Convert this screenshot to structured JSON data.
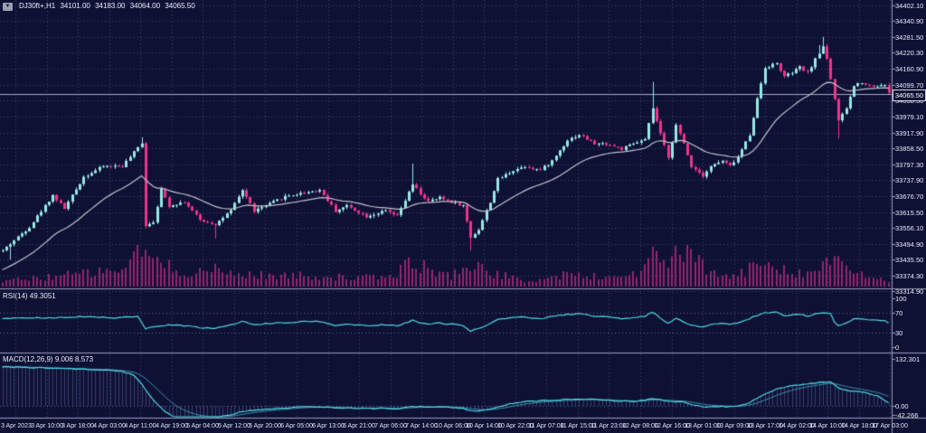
{
  "header": {
    "symbol_line": "DJ30ft+,H1",
    "open": "34101.00",
    "high": "34183.00",
    "low": "34064.00",
    "close": "34065.50"
  },
  "price_axis": {
    "labels": [
      "34402.10",
      "34340.90",
      "34281.50",
      "34220.30",
      "34160.90",
      "34099.70",
      "34038.50",
      "33979.10",
      "33917.90",
      "33858.50",
      "33797.30",
      "33737.90",
      "33676.70",
      "33615.50",
      "33556.10",
      "33494.90",
      "33435.50",
      "33374.30",
      "33314.90"
    ],
    "current": "34065.50"
  },
  "rsi_panel": {
    "label": "RSI(14)",
    "value": "49.3051",
    "axis": [
      "100",
      "70",
      "30",
      "0"
    ],
    "levels": [
      70,
      30
    ]
  },
  "macd_panel": {
    "label": "MACD(12,26,9)",
    "values": "9.006 8.573",
    "axis_max": "132.301",
    "axis_zero": "0.00",
    "axis_min": "-42.266"
  },
  "time_axis": {
    "labels": [
      "3 Apr 2023",
      "3 Apr 10:00",
      "3 Apr 18:00",
      "4 Apr 03:00",
      "4 Apr 11:00",
      "4 Apr 19:00",
      "5 Apr 04:00",
      "5 Apr 12:00",
      "5 Apr 20:00",
      "6 Apr 05:00",
      "6 Apr 13:00",
      "6 Apr 21:00",
      "7 Apr 06:00",
      "7 Apr 14:00",
      "10 Apr 06:00",
      "10 Apr 14:00",
      "10 Apr 22:00",
      "11 Apr 07:00",
      "11 Apr 15:00",
      "11 Apr 23:00",
      "12 Apr 08:00",
      "12 Apr 16:00",
      "13 Apr 01:00",
      "13 Apr 09:00",
      "13 Apr 17:00",
      "14 Apr 02:00",
      "14 Apr 10:00",
      "14 Apr 18:00",
      "17 Apr 03:00"
    ]
  },
  "colors": {
    "background": "#0e1134",
    "grid": "rgba(125,142,215,0.42)",
    "bull": "#97e9e5",
    "bear": "#f0338a",
    "ma_line": "#c3c3cc",
    "volume": "#96256e",
    "indicator_line": "#4fd9e4",
    "signal_line": "#3a93ae",
    "histogram": "rgba(85,95,150,0.6)",
    "separator": "#959cb2",
    "current_price_line": "#a8aec2",
    "level_line": "rgba(165,175,215,0.55)"
  },
  "chart_data": {
    "type": "candlestick",
    "symbol": "DJ30ft+",
    "timeframe": "H1",
    "current_bar": {
      "open": 34101.0,
      "high": 34183.0,
      "low": 34064.0,
      "close": 34065.5
    },
    "price_range_top": 34402.1,
    "price_range_bottom": 33314.9,
    "candle_count": 230,
    "ma_start": 33390,
    "price_anchors": [
      [
        0,
        33470
      ],
      [
        7,
        33560
      ],
      [
        13,
        33680
      ],
      [
        16,
        33630
      ],
      [
        21,
        33750
      ],
      [
        26,
        33790
      ],
      [
        31,
        33790
      ],
      [
        35,
        33860
      ],
      [
        36,
        33880
      ],
      [
        37,
        33565
      ],
      [
        39,
        33580
      ],
      [
        41,
        33700
      ],
      [
        43,
        33640
      ],
      [
        47,
        33655
      ],
      [
        51,
        33585
      ],
      [
        55,
        33570
      ],
      [
        59,
        33620
      ],
      [
        62,
        33700
      ],
      [
        65,
        33620
      ],
      [
        68,
        33640
      ],
      [
        73,
        33675
      ],
      [
        78,
        33690
      ],
      [
        82,
        33700
      ],
      [
        86,
        33620
      ],
      [
        89,
        33640
      ],
      [
        94,
        33600
      ],
      [
        99,
        33620
      ],
      [
        102,
        33600
      ],
      [
        106,
        33720
      ],
      [
        108,
        33685
      ],
      [
        110,
        33655
      ],
      [
        113,
        33670
      ],
      [
        116,
        33655
      ],
      [
        119,
        33640
      ],
      [
        121,
        33520
      ],
      [
        123,
        33550
      ],
      [
        126,
        33655
      ],
      [
        128,
        33740
      ],
      [
        132,
        33775
      ],
      [
        135,
        33790
      ],
      [
        139,
        33775
      ],
      [
        142,
        33810
      ],
      [
        146,
        33890
      ],
      [
        149,
        33910
      ],
      [
        153,
        33875
      ],
      [
        156,
        33875
      ],
      [
        160,
        33855
      ],
      [
        163,
        33875
      ],
      [
        166,
        33890
      ],
      [
        168,
        34010
      ],
      [
        170,
        33910
      ],
      [
        172,
        33825
      ],
      [
        174,
        33945
      ],
      [
        176,
        33875
      ],
      [
        178,
        33790
      ],
      [
        181,
        33755
      ],
      [
        183,
        33790
      ],
      [
        186,
        33810
      ],
      [
        188,
        33790
      ],
      [
        190,
        33825
      ],
      [
        193,
        33910
      ],
      [
        195,
        34045
      ],
      [
        197,
        34165
      ],
      [
        200,
        34180
      ],
      [
        202,
        34130
      ],
      [
        204,
        34145
      ],
      [
        206,
        34165
      ],
      [
        208,
        34145
      ],
      [
        210,
        34195
      ],
      [
        212,
        34245
      ],
      [
        213,
        34200
      ],
      [
        215,
        34045
      ],
      [
        216,
        33960
      ],
      [
        218,
        34010
      ],
      [
        220,
        34095
      ],
      [
        222,
        34110
      ],
      [
        224,
        34095
      ],
      [
        226,
        34095
      ],
      [
        228,
        34101
      ],
      [
        229,
        34065.5
      ]
    ],
    "wick_events": [
      [
        2,
        "low",
        33435
      ],
      [
        36,
        "high",
        33900
      ],
      [
        55,
        "low",
        33515
      ],
      [
        106,
        "high",
        33800
      ],
      [
        121,
        "low",
        33470
      ],
      [
        168,
        "high",
        34110
      ],
      [
        211,
        "high",
        34250
      ],
      [
        212,
        "high",
        34281
      ],
      [
        216,
        "low",
        33895
      ],
      [
        229,
        "low",
        34064
      ]
    ],
    "volume_anchors": [
      [
        0,
        6
      ],
      [
        10,
        10
      ],
      [
        20,
        14
      ],
      [
        30,
        18
      ],
      [
        34,
        30
      ],
      [
        36,
        42
      ],
      [
        38,
        34
      ],
      [
        42,
        22
      ],
      [
        48,
        16
      ],
      [
        55,
        18
      ],
      [
        60,
        14
      ],
      [
        70,
        12
      ],
      [
        80,
        12
      ],
      [
        90,
        10
      ],
      [
        100,
        10
      ],
      [
        104,
        22
      ],
      [
        107,
        28
      ],
      [
        110,
        18
      ],
      [
        116,
        12
      ],
      [
        121,
        26
      ],
      [
        124,
        18
      ],
      [
        130,
        12
      ],
      [
        134,
        6
      ],
      [
        140,
        8
      ],
      [
        146,
        14
      ],
      [
        150,
        12
      ],
      [
        156,
        10
      ],
      [
        160,
        12
      ],
      [
        165,
        16
      ],
      [
        168,
        34
      ],
      [
        171,
        24
      ],
      [
        174,
        40
      ],
      [
        177,
        34
      ],
      [
        180,
        26
      ],
      [
        184,
        14
      ],
      [
        188,
        10
      ],
      [
        192,
        16
      ],
      [
        195,
        26
      ],
      [
        198,
        30
      ],
      [
        201,
        22
      ],
      [
        205,
        16
      ],
      [
        208,
        14
      ],
      [
        211,
        20
      ],
      [
        213,
        30
      ],
      [
        216,
        26
      ],
      [
        219,
        18
      ],
      [
        222,
        12
      ],
      [
        226,
        10
      ],
      [
        229,
        6
      ]
    ],
    "rsi_anchors": [
      [
        0,
        58
      ],
      [
        10,
        60
      ],
      [
        20,
        62
      ],
      [
        30,
        60
      ],
      [
        35,
        63
      ],
      [
        37,
        38
      ],
      [
        40,
        42
      ],
      [
        43,
        45
      ],
      [
        47,
        44
      ],
      [
        51,
        40
      ],
      [
        55,
        38
      ],
      [
        59,
        46
      ],
      [
        62,
        52
      ],
      [
        65,
        46
      ],
      [
        68,
        48
      ],
      [
        73,
        50
      ],
      [
        78,
        52
      ],
      [
        82,
        53
      ],
      [
        86,
        44
      ],
      [
        89,
        47
      ],
      [
        94,
        44
      ],
      [
        99,
        46
      ],
      [
        102,
        44
      ],
      [
        106,
        55
      ],
      [
        108,
        50
      ],
      [
        110,
        47
      ],
      [
        113,
        49
      ],
      [
        116,
        47
      ],
      [
        119,
        45
      ],
      [
        121,
        33
      ],
      [
        123,
        38
      ],
      [
        126,
        48
      ],
      [
        128,
        56
      ],
      [
        132,
        60
      ],
      [
        135,
        62
      ],
      [
        139,
        58
      ],
      [
        142,
        62
      ],
      [
        146,
        67
      ],
      [
        149,
        69
      ],
      [
        153,
        62
      ],
      [
        156,
        62
      ],
      [
        160,
        58
      ],
      [
        163,
        61
      ],
      [
        166,
        63
      ],
      [
        168,
        72
      ],
      [
        170,
        60
      ],
      [
        172,
        50
      ],
      [
        174,
        58
      ],
      [
        176,
        52
      ],
      [
        178,
        44
      ],
      [
        181,
        42
      ],
      [
        183,
        46
      ],
      [
        186,
        48
      ],
      [
        188,
        46
      ],
      [
        190,
        50
      ],
      [
        193,
        58
      ],
      [
        195,
        65
      ],
      [
        197,
        70
      ],
      [
        200,
        71
      ],
      [
        202,
        65
      ],
      [
        204,
        66
      ],
      [
        206,
        67
      ],
      [
        208,
        64
      ],
      [
        210,
        68
      ],
      [
        212,
        71
      ],
      [
        214,
        68
      ],
      [
        215,
        52
      ],
      [
        216,
        45
      ],
      [
        218,
        50
      ],
      [
        220,
        57
      ],
      [
        222,
        58
      ],
      [
        224,
        56
      ],
      [
        226,
        56
      ],
      [
        228,
        54
      ],
      [
        229,
        49.3
      ]
    ],
    "macd_anchors": [
      [
        0,
        108
      ],
      [
        8,
        106
      ],
      [
        15,
        104
      ],
      [
        25,
        100
      ],
      [
        31,
        95
      ],
      [
        34,
        85
      ],
      [
        36,
        60
      ],
      [
        38,
        30
      ],
      [
        40,
        5
      ],
      [
        42,
        -15
      ],
      [
        44,
        -28
      ],
      [
        47,
        -33
      ],
      [
        51,
        -35
      ],
      [
        55,
        -33
      ],
      [
        59,
        -25
      ],
      [
        62,
        -15
      ],
      [
        65,
        -12
      ],
      [
        68,
        -10
      ],
      [
        73,
        -6
      ],
      [
        78,
        -3
      ],
      [
        82,
        -2
      ],
      [
        86,
        -6
      ],
      [
        89,
        -6
      ],
      [
        94,
        -8
      ],
      [
        99,
        -6
      ],
      [
        102,
        -8
      ],
      [
        106,
        -2
      ],
      [
        110,
        -3
      ],
      [
        113,
        -3
      ],
      [
        116,
        -4
      ],
      [
        119,
        -6
      ],
      [
        121,
        -14
      ],
      [
        123,
        -15
      ],
      [
        126,
        -10
      ],
      [
        128,
        -2
      ],
      [
        132,
        8
      ],
      [
        135,
        13
      ],
      [
        139,
        14
      ],
      [
        142,
        15
      ],
      [
        146,
        18
      ],
      [
        149,
        20
      ],
      [
        153,
        18
      ],
      [
        156,
        16
      ],
      [
        160,
        13
      ],
      [
        163,
        13
      ],
      [
        166,
        15
      ],
      [
        168,
        20
      ],
      [
        170,
        18
      ],
      [
        172,
        12
      ],
      [
        174,
        12
      ],
      [
        176,
        10
      ],
      [
        178,
        4
      ],
      [
        181,
        -2
      ],
      [
        183,
        -3
      ],
      [
        186,
        -2
      ],
      [
        188,
        -3
      ],
      [
        190,
        0
      ],
      [
        193,
        8
      ],
      [
        195,
        20
      ],
      [
        197,
        34
      ],
      [
        200,
        46
      ],
      [
        202,
        52
      ],
      [
        206,
        58
      ],
      [
        208,
        60
      ],
      [
        210,
        63
      ],
      [
        212,
        66
      ],
      [
        214,
        65
      ],
      [
        215,
        58
      ],
      [
        216,
        50
      ],
      [
        218,
        44
      ],
      [
        220,
        40
      ],
      [
        222,
        38
      ],
      [
        224,
        34
      ],
      [
        226,
        28
      ],
      [
        228,
        16
      ],
      [
        229,
        9
      ]
    ]
  }
}
